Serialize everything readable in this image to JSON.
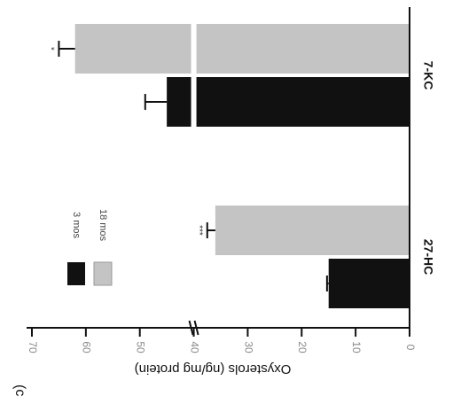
{
  "chart_data": {
    "type": "bar",
    "orientation": "horizontal",
    "rotated_view": "rotated 90° clockwise (values increase right-to-left)",
    "title": "",
    "xlabel": "",
    "ylabel": "Oxysterols (ng/mg protein)",
    "panel_label": "(c)",
    "categories": [
      "27-HC",
      "7-KC"
    ],
    "series": [
      {
        "name": "3 mos",
        "color": "#111111",
        "values": [
          15,
          45
        ]
      },
      {
        "name": "18 mos",
        "color": "#c4c4c4",
        "values": [
          36,
          62
        ]
      }
    ],
    "error": [
      [
        0.3,
        4
      ],
      [
        1.5,
        3
      ]
    ],
    "significance": [
      [
        "",
        ""
      ],
      [
        "***",
        "*"
      ]
    ],
    "ylim": [
      0,
      70
    ],
    "axis_break": 40,
    "ticks": [
      "0",
      "10",
      "20",
      "30",
      "40",
      "50",
      "60",
      "70"
    ],
    "legend": {
      "position": "top-left",
      "entries": [
        "3 mos",
        "18 mos"
      ]
    },
    "grid": false
  }
}
